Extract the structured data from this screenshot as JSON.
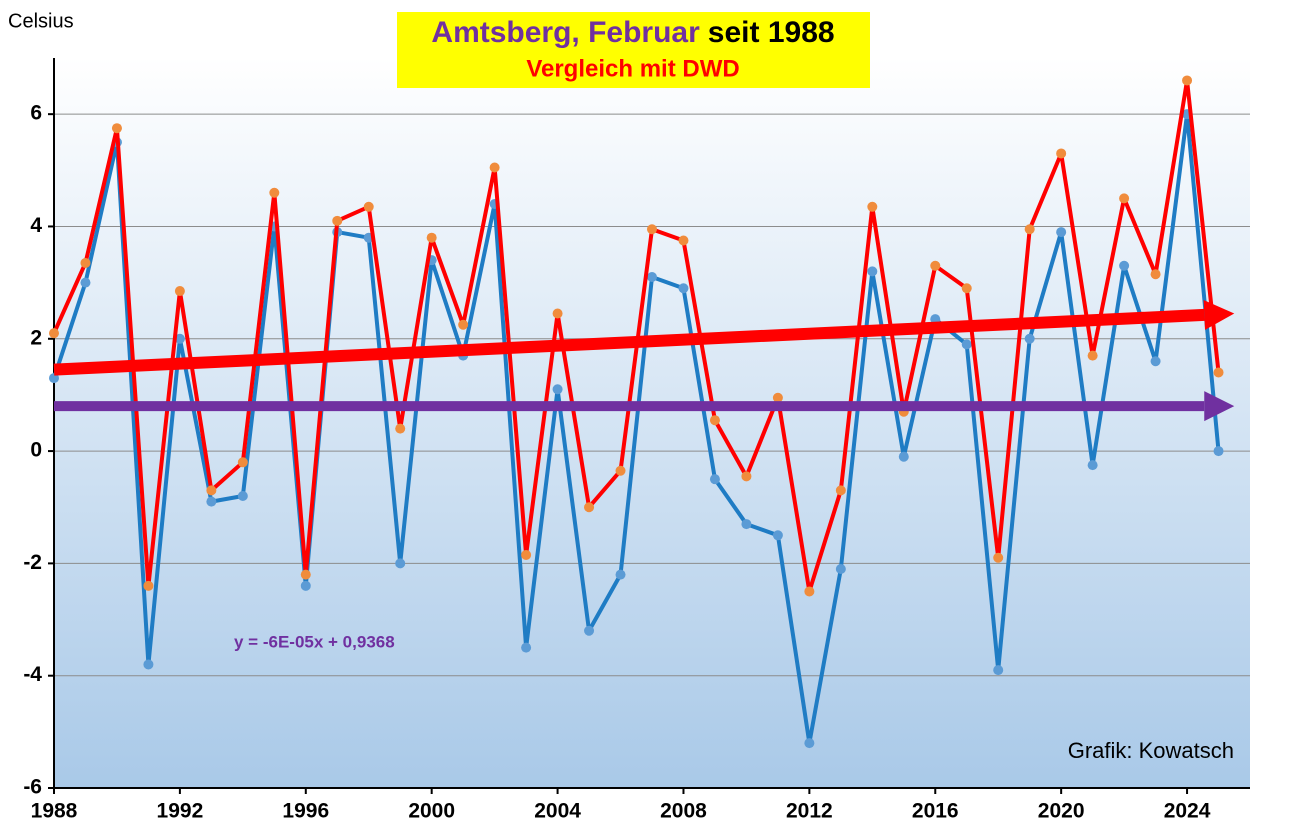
{
  "chart_data": {
    "type": "line",
    "title": "Amtsberg, Februar",
    "title_suffix": "seit 1988",
    "subtitle": "Vergleich mit DWD",
    "y_label": "Celsius",
    "annotations": [
      "y = -6E-05x + 0,9368",
      "Grafik: Kowatsch"
    ],
    "x": [
      1988,
      1989,
      1990,
      1991,
      1992,
      1993,
      1994,
      1995,
      1996,
      1997,
      1998,
      1999,
      2000,
      2001,
      2002,
      2003,
      2004,
      2005,
      2006,
      2007,
      2008,
      2009,
      2010,
      2011,
      2012,
      2013,
      2014,
      2015,
      2016,
      2017,
      2018,
      2019,
      2020,
      2021,
      2022,
      2023,
      2024,
      2025
    ],
    "series": [
      {
        "color": "#1f7cc4",
        "marker_color": "#5b9bd5",
        "values": [
          1.3,
          3.0,
          5.5,
          -3.8,
          2.0,
          -0.9,
          -0.8,
          4.0,
          -2.4,
          3.9,
          3.8,
          -2.0,
          3.4,
          1.7,
          4.4,
          -3.5,
          1.1,
          -3.2,
          -2.2,
          3.1,
          2.9,
          -0.5,
          -1.3,
          -1.5,
          -5.2,
          -2.1,
          3.2,
          -0.1,
          2.35,
          1.9,
          -3.9,
          2.0,
          3.9,
          -0.25,
          3.3,
          1.6,
          6.0,
          0.0
        ]
      },
      {
        "color": "#ff0000",
        "marker_color": "#f08c3c",
        "values": [
          2.1,
          3.35,
          5.75,
          -2.4,
          2.85,
          -0.7,
          -0.2,
          4.6,
          -2.2,
          4.1,
          4.35,
          0.4,
          3.8,
          2.25,
          5.05,
          -1.85,
          2.45,
          -1.0,
          -0.35,
          3.95,
          3.75,
          0.55,
          -0.45,
          0.95,
          -2.5,
          -0.7,
          4.35,
          0.7,
          3.3,
          2.9,
          -1.9,
          3.95,
          5.3,
          1.7,
          4.5,
          3.15,
          6.6,
          1.4
        ]
      }
    ],
    "arrows": [
      {
        "color": "#ff0000",
        "x": [
          1988,
          2025.5
        ],
        "values": [
          1.45,
          2.45
        ]
      },
      {
        "color": "#7030a0",
        "x": [
          1988,
          2025.5
        ],
        "values": [
          0.8,
          0.8
        ]
      }
    ],
    "xlim": [
      1988,
      2026
    ],
    "xticks": [
      1988,
      1992,
      1996,
      2000,
      2004,
      2008,
      2012,
      2016,
      2020,
      2024
    ],
    "ylim": [
      -6,
      7
    ],
    "yticks": [
      -6,
      -4,
      -2,
      0,
      2,
      4,
      6
    ],
    "grid": true
  }
}
